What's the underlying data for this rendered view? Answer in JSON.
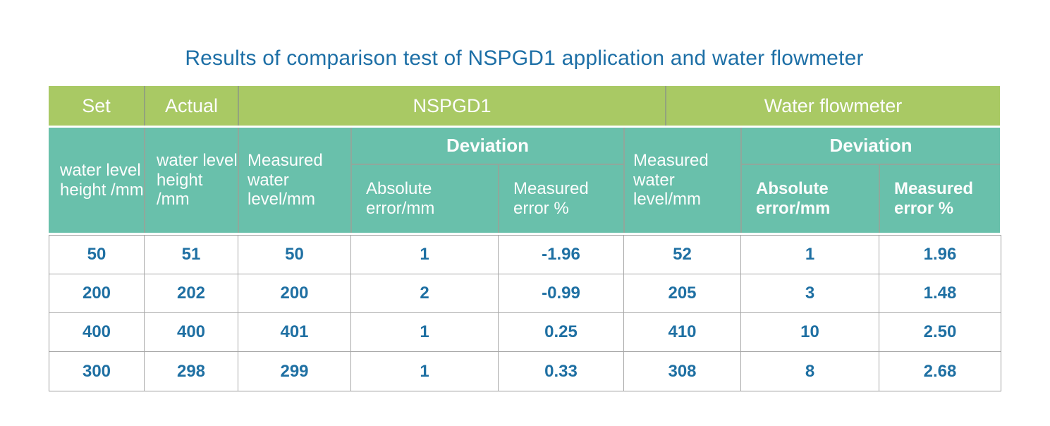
{
  "title": "Results of comparison test of NSPGD1 application and water flowmeter",
  "table": {
    "group_headers": {
      "set": "Set",
      "actual": "Actual",
      "nspgd1": "NSPGD1",
      "water_flowmeter": "Water flowmeter"
    },
    "sub_headers": {
      "set_water_level": "water level height /mm",
      "actual_water_level": "water level height /mm",
      "nspgd1_measured": "Measured water level/mm",
      "nspgd1_deviation": "Deviation",
      "nspgd1_absolute_error": "Absolute error/mm",
      "nspgd1_measured_error": "Measured error %",
      "wf_measured": "Measured water level/mm",
      "wf_deviation": "Deviation",
      "wf_absolute_error": "Absolute error/mm",
      "wf_measured_error": "Measured error %"
    },
    "rows": [
      [
        "50",
        "51",
        "50",
        "1",
        "-1.96",
        "52",
        "1",
        "1.96"
      ],
      [
        "200",
        "202",
        "200",
        "2",
        "-0.99",
        "205",
        "3",
        "1.48"
      ],
      [
        "400",
        "400",
        "401",
        "1",
        "0.25",
        "410",
        "10",
        "2.50"
      ],
      [
        "300",
        "298",
        "299",
        "1",
        "0.33",
        "308",
        "8",
        "2.68"
      ]
    ]
  },
  "colors": {
    "title_text": "#1d6fa6",
    "header_green": "#a9c964",
    "header_teal": "#69c0ab",
    "header_text": "#fdfdfd",
    "data_text": "#1f70a3",
    "data_border": "#9e9e9e"
  },
  "chart_data": {
    "type": "table",
    "title": "Results of comparison test of NSPGD1 application and water flowmeter",
    "column_groups": [
      "Set",
      "Actual",
      "NSPGD1",
      "Water flowmeter"
    ],
    "columns": [
      "Set water level height /mm",
      "Actual water level height /mm",
      "NSPGD1 Measured water level/mm",
      "NSPGD1 Deviation Absolute error/mm",
      "NSPGD1 Deviation Measured error %",
      "Water flowmeter Measured water level/mm",
      "Water flowmeter Deviation Absolute error/mm",
      "Water flowmeter Deviation Measured error %"
    ],
    "rows": [
      [
        50,
        51,
        50,
        1,
        -1.96,
        52,
        1,
        1.96
      ],
      [
        200,
        202,
        200,
        2,
        -0.99,
        205,
        3,
        1.48
      ],
      [
        400,
        400,
        401,
        1,
        0.25,
        410,
        10,
        2.5
      ],
      [
        300,
        298,
        299,
        1,
        0.33,
        308,
        8,
        2.68
      ]
    ]
  }
}
